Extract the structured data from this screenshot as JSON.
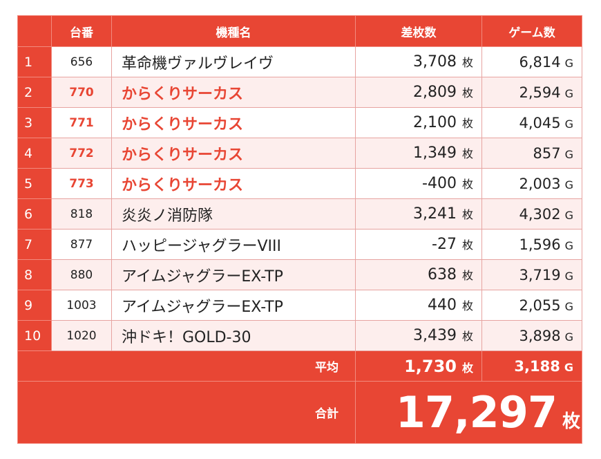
{
  "header": {
    "no": "台番",
    "name": "機種名",
    "diff": "差枚数",
    "games": "ゲーム数"
  },
  "units": {
    "diff": "枚",
    "games": "G"
  },
  "rows": [
    {
      "idx": "1",
      "no": "656",
      "name": "革命機ヴァルヴレイヴ",
      "diff": "3,708",
      "games": "6,814",
      "highlight": false
    },
    {
      "idx": "2",
      "no": "770",
      "name": "からくりサーカス",
      "diff": "2,809",
      "games": "2,594",
      "highlight": true
    },
    {
      "idx": "3",
      "no": "771",
      "name": "からくりサーカス",
      "diff": "2,100",
      "games": "4,045",
      "highlight": true
    },
    {
      "idx": "4",
      "no": "772",
      "name": "からくりサーカス",
      "diff": "1,349",
      "games": "857",
      "highlight": true
    },
    {
      "idx": "5",
      "no": "773",
      "name": "からくりサーカス",
      "diff": "-400",
      "games": "2,003",
      "highlight": true
    },
    {
      "idx": "6",
      "no": "818",
      "name": "炎炎ノ消防隊",
      "diff": "3,241",
      "games": "4,302",
      "highlight": false
    },
    {
      "idx": "7",
      "no": "877",
      "name": "ハッピージャグラーVIII",
      "diff": "-27",
      "games": "1,596",
      "highlight": false
    },
    {
      "idx": "8",
      "no": "880",
      "name": "アイムジャグラーEX-TP",
      "diff": "638",
      "games": "3,719",
      "highlight": false
    },
    {
      "idx": "9",
      "no": "1003",
      "name": "アイムジャグラーEX-TP",
      "diff": "440",
      "games": "2,055",
      "highlight": false
    },
    {
      "idx": "10",
      "no": "1020",
      "name": "沖ドキ！GOLD-30",
      "diff": "3,439",
      "games": "3,898",
      "highlight": false
    }
  ],
  "average": {
    "label": "平均",
    "diff": "1,730",
    "games": "3,188"
  },
  "total": {
    "label": "合計",
    "value": "17,297"
  },
  "colors": {
    "accent": "#e84634",
    "stripe": "#fdeeed"
  }
}
